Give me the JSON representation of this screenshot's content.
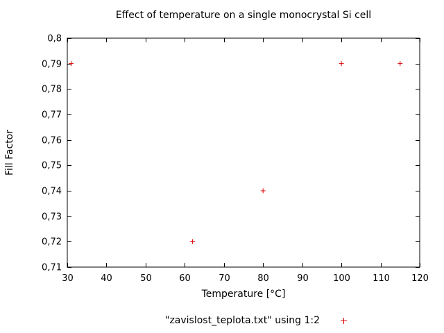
{
  "page": {
    "background": "#ffffff"
  },
  "chart_data": {
    "type": "scatter",
    "title": "Effect of temperature on a single monocrystal Si cell",
    "xlabel": "Temperature [°C]",
    "ylabel": "Fill Factor",
    "xlim": [
      30,
      120
    ],
    "ylim": [
      0.71,
      0.8
    ],
    "grid": false,
    "axis_color": "#000000",
    "x_ticks": {
      "values": [
        30,
        40,
        50,
        60,
        70,
        80,
        90,
        100,
        110,
        120
      ],
      "labels": [
        "30",
        "40",
        "50",
        "60",
        "70",
        "80",
        "90",
        "100",
        "110",
        "120"
      ]
    },
    "y_ticks": {
      "values": [
        0.71,
        0.72,
        0.73,
        0.74,
        0.75,
        0.76,
        0.77,
        0.78,
        0.79,
        0.8
      ],
      "labels": [
        "0,71",
        "0,72",
        "0,73",
        "0,74",
        "0,75",
        "0,76",
        "0,77",
        "0,78",
        "0,79",
        "0,8"
      ]
    },
    "series": [
      {
        "name": "\"zavislost_teplota.txt\" using 1:2",
        "marker": "plus",
        "color": "#dd0000",
        "points": [
          [
            31,
            0.79
          ],
          [
            62,
            0.72
          ],
          [
            80,
            0.74
          ],
          [
            100,
            0.79
          ],
          [
            115,
            0.79
          ]
        ]
      }
    ],
    "legend_position": "bottom-center-below-xlabel"
  }
}
